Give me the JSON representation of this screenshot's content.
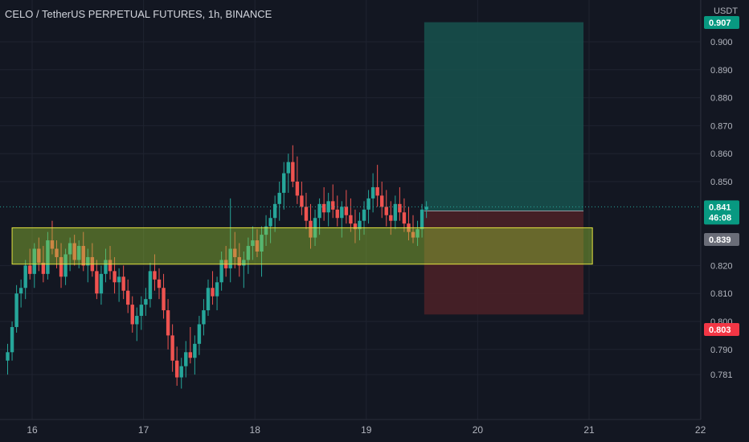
{
  "header": {
    "title": "CELO / TetherUS PERPETUAL FUTURES, 1h, BINANCE",
    "unit": "USDT"
  },
  "chart_data": {
    "type": "candlestick",
    "title": "CELO / TetherUS PERPETUAL FUTURES, 1h, BINANCE",
    "ylabel": "USDT",
    "ylim": [
      0.7765,
      0.9065
    ],
    "y_ticks": [
      "0.900",
      "0.890",
      "0.880",
      "0.870",
      "0.860",
      "0.850",
      "0.820",
      "0.810",
      "0.800",
      "0.790",
      "0.781"
    ],
    "x_range": [
      15.85,
      22.2
    ],
    "x_ticks": [
      "16",
      "17",
      "18",
      "19",
      "20",
      "21",
      "22"
    ],
    "colors": {
      "up": "#26a69a",
      "down": "#ef5350",
      "zone": "#9ccc35",
      "zone_border": "#e3e341",
      "target": "#17524d",
      "stop": "#4e2127",
      "price_tag": "#089981",
      "stop_tag": "#f23645"
    },
    "current_price": {
      "value": "0.841",
      "countdown": "46:08"
    },
    "price_tags": [
      {
        "label": "0.907",
        "color": "#089981"
      },
      {
        "label": "0.839",
        "color": "#6a6d78"
      },
      {
        "label": "0.803",
        "color": "#f23645"
      }
    ],
    "support_zone": {
      "x": [
        15.82,
        21.03
      ],
      "y": [
        0.8205,
        0.8335
      ]
    },
    "position": {
      "x": [
        19.52,
        20.95
      ],
      "entry": 0.8395,
      "target": 0.907,
      "stop": 0.8025
    },
    "candles": [
      [
        15.78,
        0.786,
        0.792,
        0.781,
        0.789
      ],
      [
        15.82,
        0.789,
        0.8,
        0.786,
        0.798
      ],
      [
        15.86,
        0.798,
        0.813,
        0.796,
        0.81
      ],
      [
        15.9,
        0.81,
        0.815,
        0.805,
        0.812
      ],
      [
        15.94,
        0.812,
        0.822,
        0.808,
        0.82
      ],
      [
        15.98,
        0.82,
        0.826,
        0.815,
        0.817
      ],
      [
        16.02,
        0.817,
        0.828,
        0.812,
        0.826
      ],
      [
        16.06,
        0.826,
        0.83,
        0.818,
        0.821
      ],
      [
        16.1,
        0.821,
        0.827,
        0.814,
        0.817
      ],
      [
        16.14,
        0.817,
        0.832,
        0.815,
        0.829
      ],
      [
        16.18,
        0.829,
        0.836,
        0.824,
        0.826
      ],
      [
        16.22,
        0.826,
        0.829,
        0.819,
        0.823
      ],
      [
        16.26,
        0.823,
        0.828,
        0.812,
        0.816
      ],
      [
        16.3,
        0.816,
        0.826,
        0.813,
        0.824
      ],
      [
        16.34,
        0.824,
        0.83,
        0.818,
        0.828
      ],
      [
        16.38,
        0.828,
        0.831,
        0.82,
        0.822
      ],
      [
        16.42,
        0.822,
        0.829,
        0.819,
        0.827
      ],
      [
        16.46,
        0.827,
        0.832,
        0.818,
        0.82
      ],
      [
        16.5,
        0.82,
        0.826,
        0.814,
        0.823
      ],
      [
        16.54,
        0.823,
        0.828,
        0.816,
        0.818
      ],
      [
        16.58,
        0.818,
        0.822,
        0.808,
        0.81
      ],
      [
        16.62,
        0.81,
        0.82,
        0.806,
        0.817
      ],
      [
        16.66,
        0.817,
        0.826,
        0.814,
        0.822
      ],
      [
        16.7,
        0.822,
        0.827,
        0.815,
        0.818
      ],
      [
        16.74,
        0.818,
        0.823,
        0.81,
        0.814
      ],
      [
        16.78,
        0.814,
        0.819,
        0.807,
        0.816
      ],
      [
        16.82,
        0.816,
        0.82,
        0.808,
        0.811
      ],
      [
        16.86,
        0.811,
        0.815,
        0.803,
        0.806
      ],
      [
        16.9,
        0.806,
        0.809,
        0.796,
        0.799
      ],
      [
        16.94,
        0.799,
        0.805,
        0.793,
        0.802
      ],
      [
        16.98,
        0.802,
        0.809,
        0.797,
        0.806
      ],
      [
        17.02,
        0.806,
        0.812,
        0.802,
        0.808
      ],
      [
        17.06,
        0.808,
        0.821,
        0.805,
        0.818
      ],
      [
        17.1,
        0.818,
        0.824,
        0.811,
        0.815
      ],
      [
        17.14,
        0.815,
        0.819,
        0.808,
        0.812
      ],
      [
        17.18,
        0.812,
        0.817,
        0.801,
        0.804
      ],
      [
        17.22,
        0.804,
        0.808,
        0.79,
        0.795
      ],
      [
        17.26,
        0.795,
        0.799,
        0.782,
        0.786
      ],
      [
        17.3,
        0.786,
        0.791,
        0.777,
        0.78
      ],
      [
        17.34,
        0.78,
        0.787,
        0.776,
        0.784
      ],
      [
        17.38,
        0.784,
        0.793,
        0.78,
        0.789
      ],
      [
        17.42,
        0.789,
        0.798,
        0.785,
        0.787
      ],
      [
        17.46,
        0.787,
        0.795,
        0.781,
        0.792
      ],
      [
        17.5,
        0.792,
        0.802,
        0.788,
        0.799
      ],
      [
        17.54,
        0.799,
        0.808,
        0.795,
        0.804
      ],
      [
        17.58,
        0.804,
        0.815,
        0.802,
        0.812
      ],
      [
        17.62,
        0.812,
        0.818,
        0.806,
        0.809
      ],
      [
        17.66,
        0.809,
        0.816,
        0.804,
        0.814
      ],
      [
        17.7,
        0.814,
        0.825,
        0.811,
        0.822
      ],
      [
        17.74,
        0.822,
        0.827,
        0.816,
        0.819
      ],
      [
        17.78,
        0.819,
        0.844,
        0.814,
        0.826
      ],
      [
        17.82,
        0.826,
        0.832,
        0.819,
        0.823
      ],
      [
        17.86,
        0.823,
        0.828,
        0.816,
        0.82
      ],
      [
        17.9,
        0.82,
        0.825,
        0.812,
        0.822
      ],
      [
        17.94,
        0.822,
        0.83,
        0.817,
        0.827
      ],
      [
        17.98,
        0.827,
        0.834,
        0.822,
        0.829
      ],
      [
        18.02,
        0.829,
        0.833,
        0.823,
        0.825
      ],
      [
        18.06,
        0.825,
        0.834,
        0.816,
        0.831
      ],
      [
        18.1,
        0.831,
        0.838,
        0.827,
        0.834
      ],
      [
        18.14,
        0.834,
        0.84,
        0.828,
        0.837
      ],
      [
        18.18,
        0.837,
        0.845,
        0.832,
        0.842
      ],
      [
        18.22,
        0.842,
        0.85,
        0.836,
        0.846
      ],
      [
        18.26,
        0.846,
        0.857,
        0.84,
        0.853
      ],
      [
        18.3,
        0.853,
        0.86,
        0.846,
        0.857
      ],
      [
        18.34,
        0.857,
        0.863,
        0.848,
        0.85
      ],
      [
        18.38,
        0.85,
        0.859,
        0.842,
        0.845
      ],
      [
        18.42,
        0.845,
        0.85,
        0.838,
        0.841
      ],
      [
        18.46,
        0.841,
        0.846,
        0.833,
        0.836
      ],
      [
        18.5,
        0.836,
        0.842,
        0.826,
        0.83
      ],
      [
        18.54,
        0.83,
        0.84,
        0.827,
        0.837
      ],
      [
        18.58,
        0.837,
        0.844,
        0.831,
        0.842
      ],
      [
        18.62,
        0.842,
        0.848,
        0.836,
        0.839
      ],
      [
        18.66,
        0.839,
        0.846,
        0.834,
        0.843
      ],
      [
        18.7,
        0.843,
        0.849,
        0.837,
        0.84
      ],
      [
        18.74,
        0.84,
        0.845,
        0.834,
        0.837
      ],
      [
        18.78,
        0.837,
        0.843,
        0.83,
        0.841
      ],
      [
        18.82,
        0.841,
        0.847,
        0.835,
        0.838
      ],
      [
        18.86,
        0.838,
        0.844,
        0.832,
        0.835
      ],
      [
        18.9,
        0.835,
        0.84,
        0.828,
        0.833
      ],
      [
        18.94,
        0.833,
        0.839,
        0.829,
        0.836
      ],
      [
        18.98,
        0.836,
        0.843,
        0.831,
        0.84
      ],
      [
        19.02,
        0.84,
        0.847,
        0.835,
        0.844
      ],
      [
        19.06,
        0.844,
        0.853,
        0.839,
        0.848
      ],
      [
        19.1,
        0.848,
        0.856,
        0.841,
        0.845
      ],
      [
        19.14,
        0.845,
        0.85,
        0.837,
        0.841
      ],
      [
        19.18,
        0.841,
        0.847,
        0.834,
        0.838
      ],
      [
        19.22,
        0.838,
        0.843,
        0.831,
        0.836
      ],
      [
        19.26,
        0.836,
        0.845,
        0.833,
        0.842
      ],
      [
        19.3,
        0.842,
        0.848,
        0.836,
        0.839
      ],
      [
        19.34,
        0.839,
        0.844,
        0.832,
        0.835
      ],
      [
        19.38,
        0.835,
        0.841,
        0.829,
        0.832
      ],
      [
        19.42,
        0.832,
        0.838,
        0.828,
        0.83
      ],
      [
        19.46,
        0.83,
        0.836,
        0.827,
        0.833
      ],
      [
        19.5,
        0.833,
        0.842,
        0.83,
        0.84
      ],
      [
        19.54,
        0.84,
        0.843,
        0.837,
        0.841
      ]
    ]
  }
}
